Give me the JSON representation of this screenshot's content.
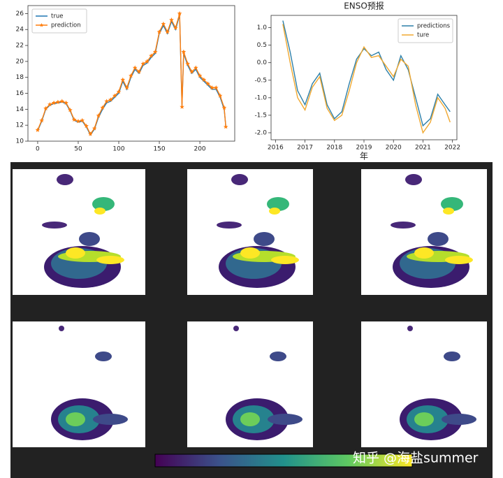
{
  "chart_data": [
    {
      "type": "line",
      "x": [
        0,
        5,
        10,
        15,
        20,
        25,
        30,
        35,
        40,
        45,
        50,
        55,
        60,
        65,
        70,
        75,
        80,
        85,
        90,
        95,
        100,
        105,
        110,
        115,
        120,
        125,
        130,
        135,
        140,
        145,
        150,
        155,
        160,
        165,
        170,
        175,
        178,
        180,
        185,
        190,
        195,
        200,
        205,
        210,
        215,
        220,
        225,
        230,
        232
      ],
      "series": [
        {
          "name": "true",
          "color": "#1f77b4",
          "values": [
            11.3,
            12.5,
            14.0,
            14.5,
            14.7,
            14.8,
            14.9,
            14.7,
            13.8,
            12.6,
            12.4,
            12.5,
            11.8,
            10.8,
            11.5,
            13.0,
            14.0,
            14.8,
            15.0,
            15.5,
            16.0,
            17.5,
            16.5,
            18.0,
            19.0,
            18.5,
            19.5,
            19.8,
            20.5,
            21.0,
            23.5,
            24.5,
            23.5,
            25.0,
            24.0,
            25.8,
            14.5,
            21.0,
            19.5,
            18.5,
            19.0,
            18.0,
            17.5,
            17.0,
            16.5,
            16.5,
            15.5,
            14.0,
            11.9
          ]
        },
        {
          "name": "prediction",
          "color": "#ff7f0e",
          "marker": "*",
          "values": [
            11.4,
            12.6,
            14.1,
            14.6,
            14.8,
            14.9,
            15.0,
            14.8,
            13.9,
            12.7,
            12.5,
            12.6,
            11.9,
            10.9,
            11.6,
            13.2,
            14.2,
            15.0,
            15.2,
            15.7,
            16.2,
            17.7,
            16.7,
            18.2,
            19.2,
            18.7,
            19.7,
            20.0,
            20.7,
            21.2,
            23.7,
            24.7,
            23.7,
            25.2,
            24.2,
            26.0,
            14.3,
            21.2,
            19.7,
            18.7,
            19.2,
            18.2,
            17.7,
            17.2,
            16.7,
            16.7,
            15.7,
            14.2,
            11.8
          ]
        }
      ],
      "xlim": [
        -12,
        243
      ],
      "xticks": [
        0,
        50,
        100,
        150,
        200
      ],
      "ylim": [
        10,
        27
      ],
      "yticks": [
        10,
        12,
        14,
        16,
        18,
        20,
        22,
        24,
        26
      ],
      "legend": "upper left"
    },
    {
      "type": "line",
      "title": "ENSO预报",
      "xlabel": "年",
      "x": [
        2016.25,
        2016.5,
        2016.75,
        2017.0,
        2017.25,
        2017.5,
        2017.75,
        2018.0,
        2018.25,
        2018.5,
        2018.75,
        2019.0,
        2019.25,
        2019.5,
        2019.75,
        2020.0,
        2020.25,
        2020.5,
        2020.75,
        2021.0,
        2021.25,
        2021.5,
        2021.75,
        2021.92
      ],
      "series": [
        {
          "name": "predictions",
          "color": "#2c7fa8",
          "values": [
            1.2,
            0.3,
            -0.8,
            -1.2,
            -0.6,
            -0.3,
            -1.2,
            -1.6,
            -1.4,
            -0.6,
            0.1,
            0.4,
            0.2,
            0.3,
            -0.2,
            -0.5,
            0.2,
            -0.2,
            -1.0,
            -1.8,
            -1.6,
            -0.9,
            -1.2,
            -1.4
          ]
        },
        {
          "name": "ture",
          "color": "#f0a830",
          "values": [
            1.1,
            0.0,
            -1.0,
            -1.35,
            -0.7,
            -0.4,
            -1.3,
            -1.65,
            -1.5,
            -0.8,
            0.0,
            0.45,
            0.15,
            0.2,
            -0.1,
            -0.4,
            0.1,
            -0.1,
            -1.2,
            -2.0,
            -1.7,
            -1.0,
            -1.3,
            -1.7
          ]
        }
      ],
      "xlim": [
        2015.85,
        2022.15
      ],
      "xticks": [
        2016,
        2017,
        2018,
        2019,
        2020,
        2021,
        2022
      ],
      "ylim": [
        -2.2,
        1.35
      ],
      "yticks": [
        {
          "value": -2.0,
          "label": "-2.0"
        },
        -1.5,
        {
          "value": -1.0,
          "label": "-1.0"
        },
        -0.5,
        {
          "value": 0.0,
          "label": "0.0"
        },
        0.5,
        {
          "value": 1.0,
          "label": "1.0"
        }
      ],
      "legend": "upper right"
    }
  ],
  "watermark": "知乎 @海盐summer"
}
